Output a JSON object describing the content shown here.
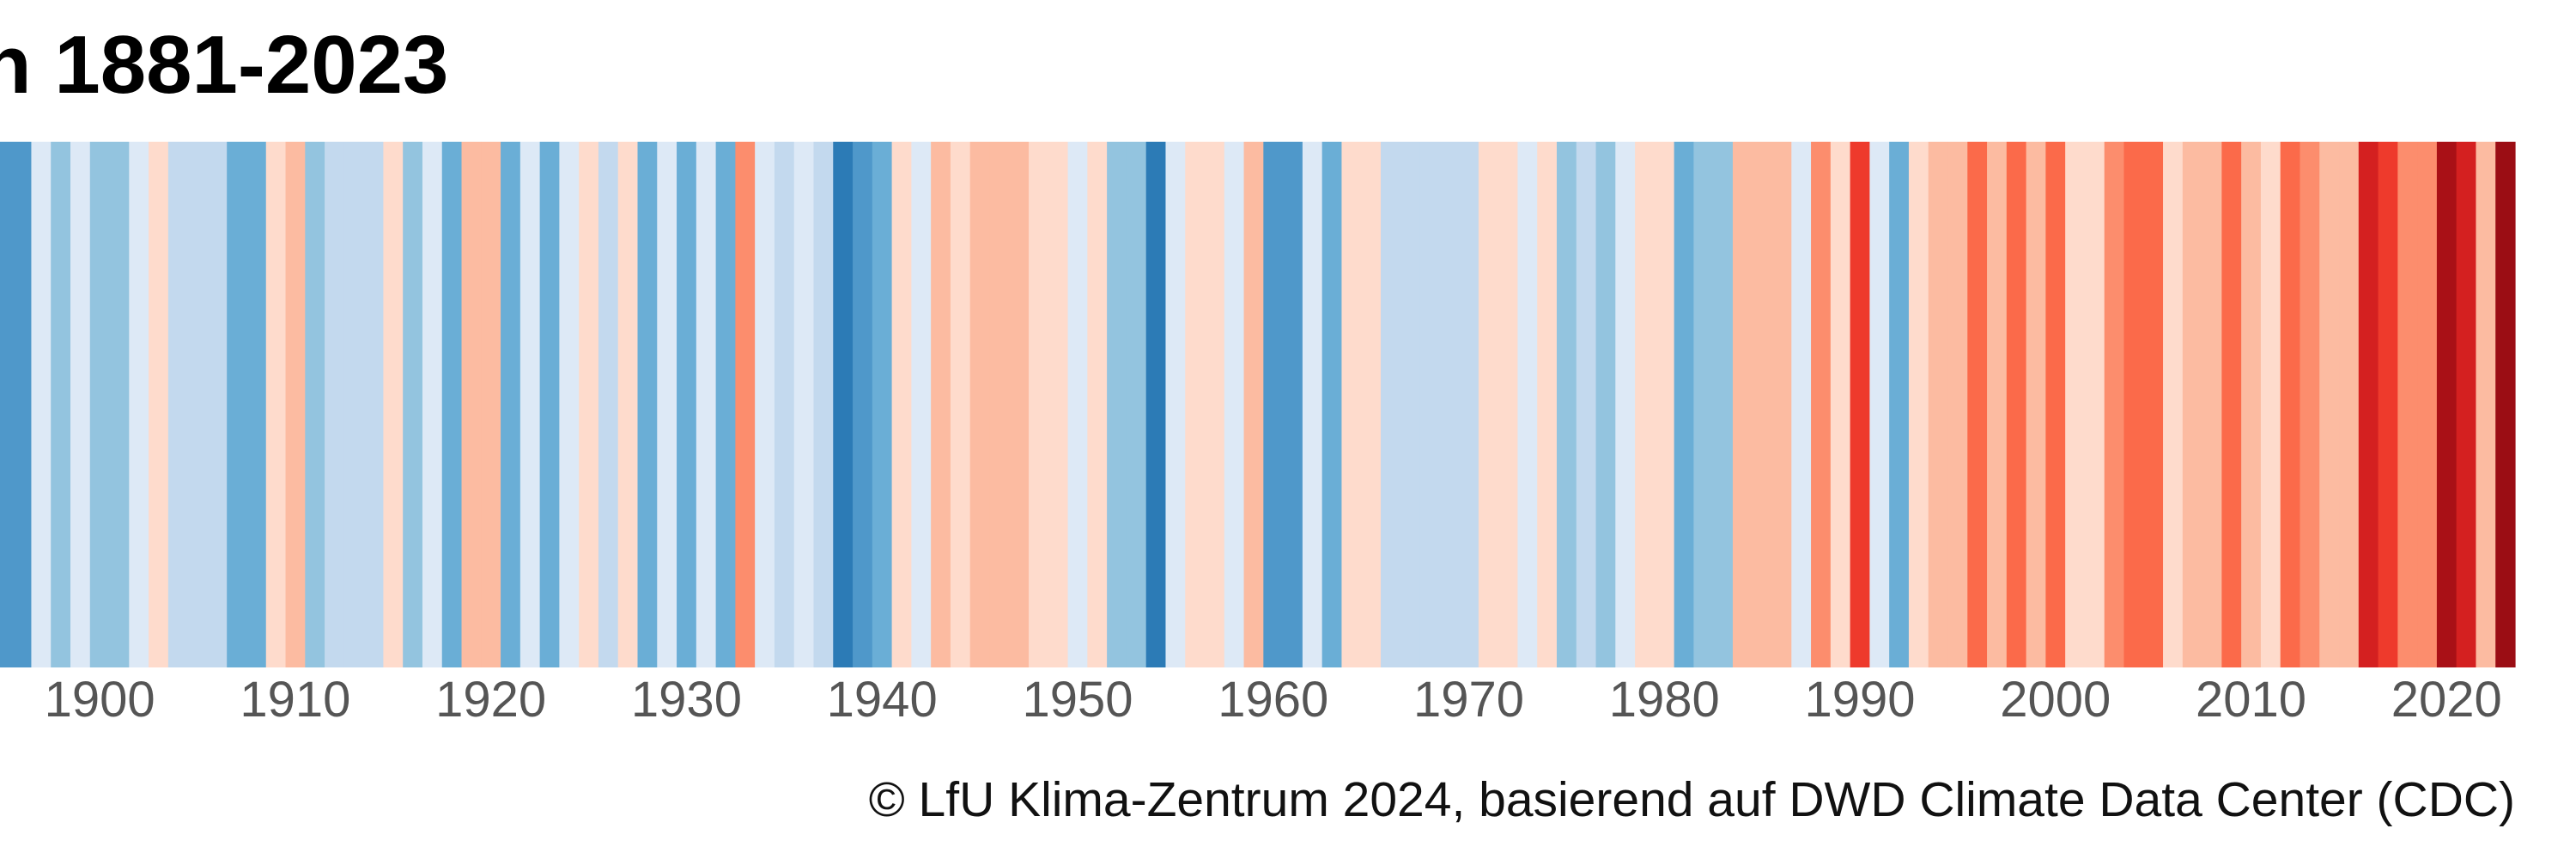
{
  "chart_data": {
    "type": "stripes",
    "title": "n 1881-2023",
    "source": "© LfU Klima-Zentrum 2024, basierend auf DWD Climate Data Center (CDC)",
    "x": [
      1895,
      1896,
      1897,
      1898,
      1899,
      1900,
      1901,
      1902,
      1903,
      1904,
      1905,
      1906,
      1907,
      1908,
      1909,
      1910,
      1911,
      1912,
      1913,
      1914,
      1915,
      1916,
      1917,
      1918,
      1919,
      1920,
      1921,
      1922,
      1923,
      1924,
      1925,
      1926,
      1927,
      1928,
      1929,
      1930,
      1931,
      1932,
      1933,
      1934,
      1935,
      1936,
      1937,
      1938,
      1939,
      1940,
      1941,
      1942,
      1943,
      1944,
      1945,
      1946,
      1947,
      1948,
      1949,
      1950,
      1951,
      1952,
      1953,
      1954,
      1955,
      1956,
      1957,
      1958,
      1959,
      1960,
      1961,
      1962,
      1963,
      1964,
      1965,
      1966,
      1967,
      1968,
      1969,
      1970,
      1971,
      1972,
      1973,
      1974,
      1975,
      1976,
      1977,
      1978,
      1979,
      1980,
      1981,
      1982,
      1983,
      1984,
      1985,
      1986,
      1987,
      1988,
      1989,
      1990,
      1991,
      1992,
      1993,
      1994,
      1995,
      1996,
      1997,
      1998,
      1999,
      2000,
      2001,
      2002,
      2003,
      2004,
      2005,
      2006,
      2007,
      2008,
      2009,
      2010,
      2011,
      2012,
      2013,
      2014,
      2015,
      2016,
      2017,
      2018,
      2019,
      2020,
      2021,
      2022,
      2023
    ],
    "values": [
      -2,
      -2,
      -0.3,
      -1,
      -0.3,
      -1,
      -1,
      -0.2,
      0.2,
      -0.5,
      -0.5,
      -0.5,
      -1.5,
      -1.5,
      0.2,
      0.5,
      -1,
      -0.5,
      -0.5,
      -0.5,
      0.2,
      -1,
      -0.3,
      -1.5,
      0.5,
      0.7,
      -1.5,
      -0.3,
      -1.5,
      -0.3,
      0.2,
      -0.5,
      0.2,
      -1.5,
      -0.3,
      -1.5,
      -0.3,
      -1.5,
      1,
      -0.2,
      -0.5,
      -0.2,
      -0.5,
      -3,
      -2,
      -1.5,
      0.2,
      -0.3,
      0.5,
      0.2,
      0.7,
      0.7,
      0.5,
      0.2,
      0.2,
      -0.3,
      0.2,
      -1,
      -1,
      -3,
      -0.2,
      0.2,
      0.3,
      -0.2,
      0.5,
      -2,
      -2,
      -0.2,
      -1.5,
      0.2,
      0.2,
      -0.5,
      -0.7,
      -0.7,
      -0.5,
      -0.7,
      0.2,
      0.2,
      -0.2,
      0.2,
      -1,
      -0.5,
      -1,
      -0.3,
      0.2,
      0.3,
      -1.5,
      -1,
      -1,
      0.5,
      0.7,
      0.7,
      -0.3,
      1,
      0.3,
      2,
      -0.3,
      -1.5,
      0.3,
      0.7,
      0.7,
      1.5,
      0.7,
      1.5,
      0.7,
      1.5,
      0.3,
      0.2,
      1,
      1.5,
      1.5,
      0.3,
      0.7,
      0.5,
      1.5,
      0.7,
      0.3,
      1.5,
      1,
      0.7,
      0.7,
      2.5,
      2,
      1.2,
      1.2,
      3,
      2.5,
      0.7,
      3.3
    ],
    "color_scale": {
      "values": [
        -3,
        -2,
        -1.5,
        -1,
        -0.5,
        -0.2,
        0.2,
        0.5,
        1,
        1.5,
        2,
        2.5,
        3,
        3.3
      ],
      "colors": [
        "#2c7bb6",
        "#4f98ca",
        "#6aaed6",
        "#93c4df",
        "#c3d9ee",
        "#dde9f6",
        "#fedbcc",
        "#fcbba1",
        "#fc8d6d",
        "#fb6a4a",
        "#ee3a2c",
        "#d42020",
        "#a91016",
        "#9b0d14"
      ]
    },
    "xlim": [
      1894.9,
      2023.5
    ],
    "xticks": [
      1900,
      1910,
      1920,
      1930,
      1940,
      1950,
      1960,
      1970,
      1980,
      1990,
      2000,
      2010,
      2020
    ]
  }
}
